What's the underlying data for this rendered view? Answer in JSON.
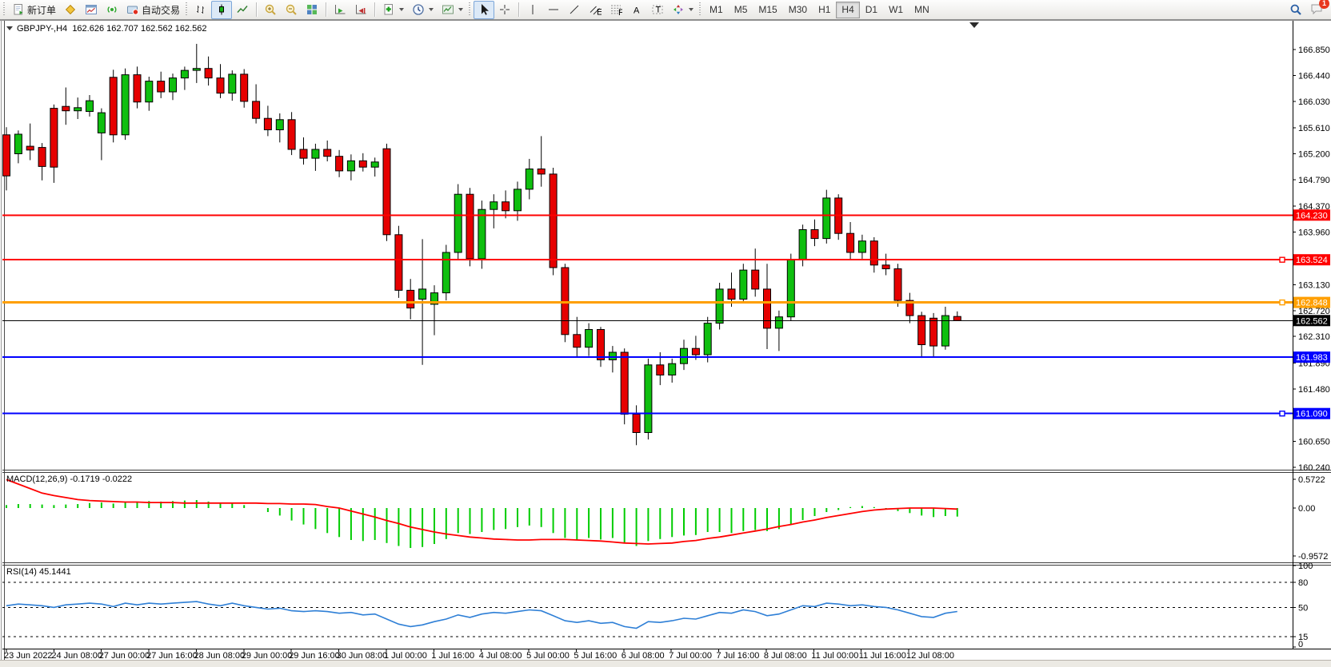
{
  "toolbar": {
    "new_order_label": "新订单",
    "autotrading_label": "自动交易",
    "timeframes": [
      "M1",
      "M5",
      "M15",
      "M30",
      "H1",
      "H4",
      "D1",
      "W1",
      "MN"
    ],
    "active_timeframe": "H4",
    "notification_count": "1"
  },
  "chart": {
    "title": "GBPJPY-,H4",
    "ohlc": "162.626 162.707 162.562 162.562",
    "macd_label": "MACD(12,26,9) -0.1719 -0.0222",
    "rsi_label": "RSI(14) 45.1441"
  },
  "chart_data": [
    {
      "type": "candlestick",
      "symbol": "GBPJPY-",
      "timeframe": "H4",
      "current_bar": {
        "open": 162.626,
        "high": 162.707,
        "low": 162.562,
        "close": 162.562
      },
      "ylim": [
        160.24,
        167.05
      ],
      "y_ticks": [
        "166.850",
        "166.440",
        "166.030",
        "165.610",
        "165.200",
        "164.790",
        "164.370",
        "163.960",
        "163.130",
        "162.720",
        "162.310",
        "161.890",
        "161.480",
        "160.650",
        "160.240"
      ],
      "x_labels": [
        "23 Jun 2022",
        "24 Jun 08:00",
        "27 Jun 00:00",
        "27 Jun 16:00",
        "28 Jun 08:00",
        "29 Jun 00:00",
        "29 Jun 16:00",
        "30 Jun 08:00",
        "1 Jul 00:00",
        "1 Jul 16:00",
        "4 Jul 08:00",
        "5 Jul 00:00",
        "5 Jul 16:00",
        "6 Jul 08:00",
        "7 Jul 00:00",
        "7 Jul 16:00",
        "8 Jul 08:00",
        "11 Jul 00:00",
        "11 Jul 16:00",
        "12 Jul 08:00"
      ],
      "h_lines": [
        {
          "price": "164.230",
          "color": "#ff0000",
          "width": 2,
          "marker": false
        },
        {
          "price": "163.524",
          "color": "#ff0000",
          "width": 2,
          "marker": true
        },
        {
          "price": "162.848",
          "color": "#ff9f00",
          "width": 3,
          "marker": true
        },
        {
          "price": "162.562",
          "color": "#000000",
          "width": 1,
          "marker": false
        },
        {
          "price": "161.983",
          "color": "#0000ff",
          "width": 2,
          "marker": false
        },
        {
          "price": "161.090",
          "color": "#0000ff",
          "width": 2,
          "marker": true
        }
      ],
      "colors": {
        "up": "#0fbf0f",
        "down": "#e60000",
        "wick": "#000000"
      },
      "candles": [
        [
          165.5,
          165.62,
          164.62,
          164.85
        ],
        [
          165.2,
          165.57,
          165.05,
          165.51
        ],
        [
          165.32,
          165.68,
          165.1,
          165.26
        ],
        [
          165.3,
          165.37,
          164.78,
          165.0
        ],
        [
          165.92,
          165.98,
          164.74,
          164.99
        ],
        [
          165.95,
          166.25,
          165.66,
          165.88
        ],
        [
          165.88,
          166.09,
          165.75,
          165.93
        ],
        [
          165.87,
          166.13,
          165.79,
          166.04
        ],
        [
          165.53,
          165.92,
          165.1,
          165.85
        ],
        [
          166.41,
          166.53,
          165.38,
          165.5
        ],
        [
          165.5,
          166.55,
          165.42,
          166.45
        ],
        [
          166.45,
          166.58,
          165.92,
          166.02
        ],
        [
          166.02,
          166.42,
          165.88,
          166.35
        ],
        [
          166.35,
          166.5,
          166.08,
          166.18
        ],
        [
          166.18,
          166.47,
          166.05,
          166.4
        ],
        [
          166.4,
          166.58,
          166.21,
          166.52
        ],
        [
          166.52,
          166.94,
          166.32,
          166.55
        ],
        [
          166.55,
          166.74,
          166.28,
          166.4
        ],
        [
          166.4,
          166.62,
          166.08,
          166.16
        ],
        [
          166.16,
          166.52,
          166.04,
          166.46
        ],
        [
          166.46,
          166.54,
          165.93,
          166.03
        ],
        [
          166.03,
          166.3,
          165.68,
          165.76
        ],
        [
          165.76,
          165.96,
          165.48,
          165.58
        ],
        [
          165.58,
          165.84,
          165.38,
          165.74
        ],
        [
          165.74,
          165.86,
          165.18,
          165.27
        ],
        [
          165.27,
          165.46,
          165.03,
          165.13
        ],
        [
          165.13,
          165.36,
          164.93,
          165.27
        ],
        [
          165.27,
          165.41,
          165.08,
          165.16
        ],
        [
          165.16,
          165.26,
          164.83,
          164.93
        ],
        [
          164.93,
          165.19,
          164.78,
          165.09
        ],
        [
          165.09,
          165.21,
          164.92,
          164.99
        ],
        [
          164.99,
          165.14,
          164.84,
          165.07
        ],
        [
          165.28,
          165.36,
          163.82,
          163.92
        ],
        [
          163.92,
          164.06,
          162.92,
          163.04
        ],
        [
          163.04,
          163.22,
          162.58,
          162.76
        ],
        [
          162.9,
          163.85,
          161.86,
          163.06
        ],
        [
          162.82,
          163.12,
          162.33,
          163.0
        ],
        [
          163.0,
          163.76,
          162.88,
          163.64
        ],
        [
          163.64,
          164.72,
          163.52,
          164.56
        ],
        [
          164.56,
          164.66,
          163.42,
          163.54
        ],
        [
          163.54,
          164.46,
          163.38,
          164.32
        ],
        [
          164.32,
          164.56,
          164.02,
          164.44
        ],
        [
          164.44,
          164.62,
          164.18,
          164.3
        ],
        [
          164.3,
          164.76,
          164.14,
          164.64
        ],
        [
          164.64,
          165.12,
          164.48,
          164.96
        ],
        [
          164.96,
          165.48,
          164.68,
          164.88
        ],
        [
          164.88,
          164.98,
          163.28,
          163.4
        ],
        [
          163.4,
          163.46,
          162.22,
          162.34
        ],
        [
          162.34,
          162.62,
          161.98,
          162.14
        ],
        [
          162.14,
          162.52,
          162.0,
          162.42
        ],
        [
          162.42,
          162.46,
          161.83,
          161.94
        ],
        [
          161.94,
          162.16,
          161.74,
          162.06
        ],
        [
          162.06,
          162.12,
          160.92,
          161.08
        ],
        [
          161.08,
          161.22,
          160.59,
          160.79
        ],
        [
          160.79,
          161.96,
          160.68,
          161.86
        ],
        [
          161.86,
          162.06,
          161.54,
          161.7
        ],
        [
          161.7,
          161.96,
          161.58,
          161.88
        ],
        [
          161.88,
          162.26,
          161.78,
          162.12
        ],
        [
          162.12,
          162.32,
          161.94,
          162.02
        ],
        [
          162.02,
          162.62,
          161.9,
          162.52
        ],
        [
          162.52,
          163.16,
          162.42,
          163.06
        ],
        [
          163.06,
          163.32,
          162.78,
          162.9
        ],
        [
          162.9,
          163.46,
          162.84,
          163.36
        ],
        [
          163.36,
          163.7,
          162.94,
          163.06
        ],
        [
          163.06,
          163.46,
          162.11,
          162.44
        ],
        [
          162.44,
          162.72,
          162.08,
          162.62
        ],
        [
          162.62,
          163.62,
          162.56,
          163.52
        ],
        [
          163.52,
          164.08,
          163.42,
          164.0
        ],
        [
          164.0,
          164.16,
          163.74,
          163.86
        ],
        [
          163.86,
          164.63,
          163.78,
          164.5
        ],
        [
          164.5,
          164.56,
          163.84,
          163.94
        ],
        [
          163.94,
          164.12,
          163.52,
          163.64
        ],
        [
          163.64,
          163.92,
          163.54,
          163.82
        ],
        [
          163.82,
          163.88,
          163.32,
          163.44
        ],
        [
          163.44,
          163.62,
          163.28,
          163.38
        ],
        [
          163.38,
          163.46,
          162.78,
          162.88
        ],
        [
          162.88,
          163.0,
          162.52,
          162.64
        ],
        [
          162.64,
          162.7,
          161.97,
          162.18
        ],
        [
          162.6,
          162.68,
          161.98,
          162.16
        ],
        [
          162.16,
          162.78,
          162.1,
          162.64
        ],
        [
          162.626,
          162.707,
          162.562,
          162.562
        ]
      ]
    },
    {
      "type": "bar",
      "name": "MACD(12,26,9)",
      "main_value": -0.1719,
      "signal_value": -0.0222,
      "ylim": [
        -0.9572,
        0.5722
      ],
      "y_ticks": [
        "0.5722",
        "0.00",
        "-0.9572"
      ],
      "colors": {
        "histogram": "#00cc00",
        "signal": "#ff0000"
      },
      "histogram": [
        0.06,
        0.08,
        0.08,
        0.07,
        0.06,
        0.07,
        0.08,
        0.1,
        0.11,
        0.09,
        0.12,
        0.13,
        0.14,
        0.13,
        0.14,
        0.15,
        0.16,
        0.13,
        0.1,
        0.11,
        0.06,
        0.0,
        -0.08,
        -0.15,
        -0.25,
        -0.33,
        -0.42,
        -0.5,
        -0.58,
        -0.64,
        -0.66,
        -0.64,
        -0.7,
        -0.76,
        -0.8,
        -0.78,
        -0.72,
        -0.62,
        -0.5,
        -0.52,
        -0.48,
        -0.44,
        -0.42,
        -0.38,
        -0.35,
        -0.38,
        -0.5,
        -0.6,
        -0.64,
        -0.6,
        -0.63,
        -0.6,
        -0.7,
        -0.76,
        -0.66,
        -0.62,
        -0.58,
        -0.55,
        -0.54,
        -0.48,
        -0.48,
        -0.5,
        -0.46,
        -0.44,
        -0.46,
        -0.42,
        -0.32,
        -0.24,
        -0.16,
        -0.08,
        -0.04,
        0.02,
        0.04,
        0.02,
        -0.03,
        -0.06,
        -0.1,
        -0.15,
        -0.18,
        -0.16,
        -0.1719
      ],
      "signal": [
        0.57,
        0.48,
        0.39,
        0.3,
        0.25,
        0.21,
        0.17,
        0.15,
        0.14,
        0.13,
        0.12,
        0.12,
        0.11,
        0.11,
        0.11,
        0.1,
        0.1,
        0.1,
        0.1,
        0.1,
        0.1,
        0.1,
        0.09,
        0.09,
        0.08,
        0.08,
        0.07,
        0.03,
        0.0,
        -0.06,
        -0.12,
        -0.18,
        -0.25,
        -0.31,
        -0.38,
        -0.43,
        -0.48,
        -0.52,
        -0.55,
        -0.58,
        -0.6,
        -0.62,
        -0.63,
        -0.64,
        -0.64,
        -0.63,
        -0.63,
        -0.63,
        -0.64,
        -0.65,
        -0.66,
        -0.68,
        -0.7,
        -0.71,
        -0.72,
        -0.71,
        -0.7,
        -0.67,
        -0.65,
        -0.61,
        -0.58,
        -0.54,
        -0.5,
        -0.46,
        -0.42,
        -0.37,
        -0.33,
        -0.28,
        -0.24,
        -0.19,
        -0.15,
        -0.11,
        -0.07,
        -0.04,
        -0.02,
        -0.01,
        0.0,
        0.0,
        0.0,
        -0.01,
        -0.02
      ]
    },
    {
      "type": "line",
      "name": "RSI(14)",
      "value": 45.1441,
      "levels": [
        80,
        50,
        15
      ],
      "y_ticks": [
        "100",
        "80",
        "50",
        "15",
        "0"
      ],
      "colors": {
        "line": "#2e7fd6"
      },
      "values": [
        52,
        54,
        53,
        52,
        50,
        53,
        54,
        55,
        54,
        51,
        55,
        53,
        55,
        54,
        55,
        56,
        57,
        54,
        52,
        55,
        52,
        50,
        48,
        49,
        46,
        45,
        46,
        45,
        43,
        44,
        41,
        42,
        36,
        30,
        27,
        29,
        33,
        36,
        41,
        38,
        42,
        44,
        43,
        45,
        47,
        46,
        40,
        34,
        32,
        34,
        31,
        32,
        27,
        25,
        33,
        32,
        34,
        37,
        36,
        40,
        44,
        43,
        47,
        45,
        40,
        42,
        47,
        52,
        51,
        55,
        54,
        52,
        53,
        51,
        50,
        47,
        43,
        39,
        38,
        43,
        45.1441
      ]
    }
  ]
}
